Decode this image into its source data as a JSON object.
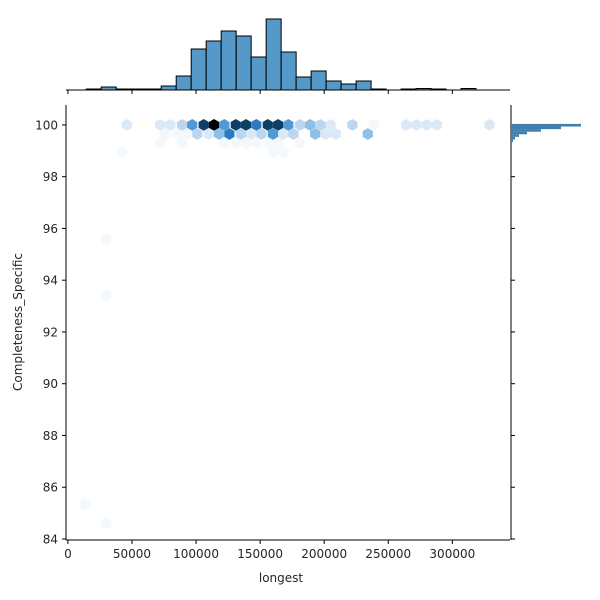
{
  "chart_data": {
    "type": "hexbin_jointplot",
    "xlabel": "longest",
    "ylabel": "Completeness_Specific",
    "xlim": [
      -1500,
      345000
    ],
    "ylim": [
      83.96,
      100.77
    ],
    "x_ticks": [
      0,
      50000,
      100000,
      150000,
      200000,
      250000,
      300000
    ],
    "x_tick_labels": [
      "0",
      "50000",
      "100000",
      "150000",
      "200000",
      "250000",
      "300000"
    ],
    "y_ticks": [
      84,
      86,
      88,
      90,
      92,
      94,
      96,
      98,
      100
    ],
    "y_tick_labels": [
      "84",
      "86",
      "88",
      "90",
      "92",
      "94",
      "96",
      "98",
      "100"
    ],
    "colors": {
      "bar_fill": "#5499c7",
      "bar_edge": "#000000",
      "right_hist": "#3f7fae",
      "hex_scale": [
        "#f3f8fd",
        "#dbe9f6",
        "#bcd6ef",
        "#8dc0e8",
        "#4e9ad8",
        "#2a7bc2",
        "#1a5f99",
        "#0e3f66",
        "#000000"
      ]
    },
    "top_histogram": {
      "bin_width": 11700,
      "bin_start": 14300,
      "counts": [
        1,
        3,
        0.5,
        0.5,
        1,
        4,
        14,
        41,
        49,
        59,
        54,
        33,
        71,
        38,
        13,
        19,
        9,
        6,
        9,
        1,
        0,
        0.5,
        1.5,
        0.5,
        0,
        1.5
      ]
    },
    "right_histogram": {
      "note": "Distribution heavily concentrated at 100",
      "bins": [
        {
          "y": 100.0,
          "len": 70
        },
        {
          "y": 99.9,
          "len": 50
        },
        {
          "y": 99.8,
          "len": 30
        },
        {
          "y": 99.7,
          "len": 16
        },
        {
          "y": 99.6,
          "len": 8
        },
        {
          "y": 99.5,
          "len": 4
        },
        {
          "y": 99.4,
          "len": 2
        }
      ]
    },
    "hexbins": [
      {
        "x": 46000,
        "y": 100.0,
        "level": 1
      },
      {
        "x": 72000,
        "y": 100.0,
        "level": 1
      },
      {
        "x": 80000,
        "y": 100.0,
        "level": 1
      },
      {
        "x": 89000,
        "y": 100.0,
        "level": 2
      },
      {
        "x": 97000,
        "y": 100.0,
        "level": 4
      },
      {
        "x": 106000,
        "y": 100.0,
        "level": 7
      },
      {
        "x": 114000,
        "y": 100.0,
        "level": 8
      },
      {
        "x": 122000,
        "y": 100.0,
        "level": 4
      },
      {
        "x": 131000,
        "y": 100.0,
        "level": 7
      },
      {
        "x": 139000,
        "y": 100.0,
        "level": 7
      },
      {
        "x": 147000,
        "y": 100.0,
        "level": 5
      },
      {
        "x": 156000,
        "y": 100.0,
        "level": 7
      },
      {
        "x": 164000,
        "y": 100.0,
        "level": 7
      },
      {
        "x": 172000,
        "y": 100.0,
        "level": 4
      },
      {
        "x": 181000,
        "y": 100.0,
        "level": 2
      },
      {
        "x": 189000,
        "y": 100.0,
        "level": 3
      },
      {
        "x": 197000,
        "y": 100.0,
        "level": 2
      },
      {
        "x": 205000,
        "y": 100.0,
        "level": 1
      },
      {
        "x": 222000,
        "y": 100.0,
        "level": 2
      },
      {
        "x": 239000,
        "y": 100.0,
        "level": 0
      },
      {
        "x": 264000,
        "y": 100.0,
        "level": 1
      },
      {
        "x": 272000,
        "y": 100.0,
        "level": 1
      },
      {
        "x": 280000,
        "y": 100.0,
        "level": 1
      },
      {
        "x": 288000,
        "y": 100.0,
        "level": 1
      },
      {
        "x": 329000,
        "y": 100.0,
        "level": 1
      },
      {
        "x": 76000,
        "y": 99.65,
        "level": 0
      },
      {
        "x": 85000,
        "y": 99.65,
        "level": 0
      },
      {
        "x": 93000,
        "y": 99.65,
        "level": 0
      },
      {
        "x": 101000,
        "y": 99.65,
        "level": 2
      },
      {
        "x": 110000,
        "y": 99.65,
        "level": 1
      },
      {
        "x": 118000,
        "y": 99.65,
        "level": 3
      },
      {
        "x": 126000,
        "y": 99.65,
        "level": 5
      },
      {
        "x": 135000,
        "y": 99.65,
        "level": 2
      },
      {
        "x": 143000,
        "y": 99.65,
        "level": 1
      },
      {
        "x": 151000,
        "y": 99.65,
        "level": 2
      },
      {
        "x": 160000,
        "y": 99.65,
        "level": 4
      },
      {
        "x": 168000,
        "y": 99.65,
        "level": 1
      },
      {
        "x": 176000,
        "y": 99.65,
        "level": 2
      },
      {
        "x": 193000,
        "y": 99.65,
        "level": 3
      },
      {
        "x": 201000,
        "y": 99.65,
        "level": 1
      },
      {
        "x": 209000,
        "y": 99.65,
        "level": 1
      },
      {
        "x": 234000,
        "y": 99.65,
        "level": 3
      },
      {
        "x": 72000,
        "y": 99.3,
        "level": 0
      },
      {
        "x": 89000,
        "y": 99.3,
        "level": 0
      },
      {
        "x": 122000,
        "y": 99.3,
        "level": 0
      },
      {
        "x": 131000,
        "y": 99.3,
        "level": 0
      },
      {
        "x": 139000,
        "y": 99.3,
        "level": 0
      },
      {
        "x": 147000,
        "y": 99.3,
        "level": 0
      },
      {
        "x": 156000,
        "y": 99.3,
        "level": 0
      },
      {
        "x": 164000,
        "y": 99.3,
        "level": 0
      },
      {
        "x": 181000,
        "y": 99.3,
        "level": 0
      },
      {
        "x": 42000,
        "y": 98.95,
        "level": 0
      },
      {
        "x": 160000,
        "y": 98.95,
        "level": 0
      },
      {
        "x": 168000,
        "y": 98.95,
        "level": 0
      },
      {
        "x": 30000,
        "y": 95.6,
        "level": 0
      },
      {
        "x": 30000,
        "y": 93.4,
        "level": 0
      },
      {
        "x": 13000,
        "y": 85.35,
        "level": 0
      },
      {
        "x": 30000,
        "y": 84.6,
        "level": 0
      }
    ]
  }
}
